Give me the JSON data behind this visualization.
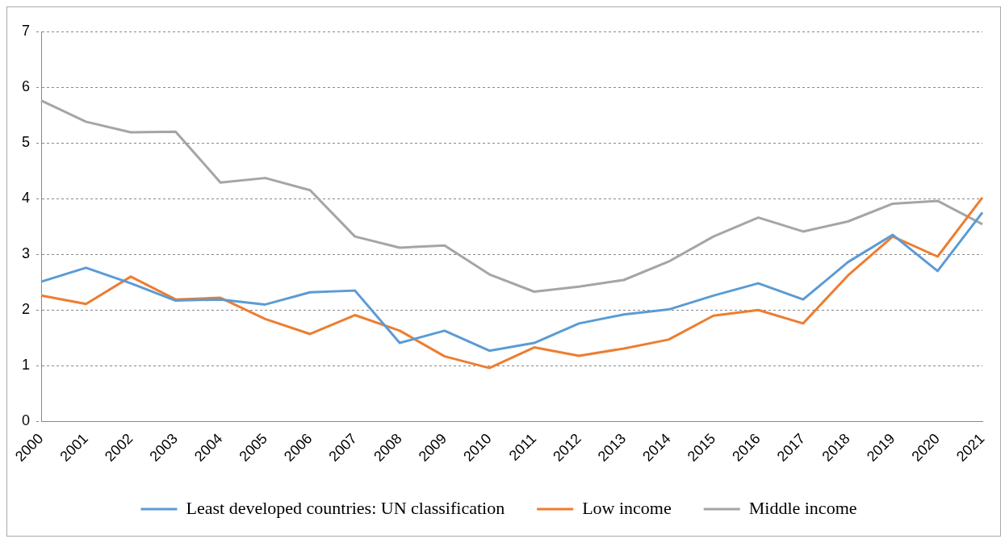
{
  "chart_data": {
    "type": "line",
    "categories": [
      "2000",
      "2001",
      "2002",
      "2003",
      "2004",
      "2005",
      "2006",
      "2007",
      "2008",
      "2009",
      "2010",
      "2011",
      "2012",
      "2013",
      "2014",
      "2015",
      "2016",
      "2017",
      "2018",
      "2019",
      "2020",
      "2021"
    ],
    "series": [
      {
        "name": "Least developed countries: UN classification",
        "color": "#5b9bd5",
        "values": [
          2.51,
          2.76,
          2.48,
          2.17,
          2.19,
          2.1,
          2.32,
          2.35,
          1.41,
          1.63,
          1.27,
          1.41,
          1.76,
          1.92,
          2.01,
          2.26,
          2.48,
          2.19,
          2.86,
          3.35,
          2.7,
          3.75
        ]
      },
      {
        "name": "Low income",
        "color": "#ed7d31",
        "values": [
          2.26,
          2.11,
          2.6,
          2.19,
          2.22,
          1.84,
          1.57,
          1.91,
          1.63,
          1.17,
          0.96,
          1.33,
          1.18,
          1.31,
          1.47,
          1.9,
          2.0,
          1.76,
          2.62,
          3.32,
          2.96,
          4.02
        ]
      },
      {
        "name": "Middle income",
        "color": "#a5a5a5",
        "values": [
          5.76,
          5.38,
          5.19,
          5.2,
          4.29,
          4.37,
          4.15,
          3.32,
          3.12,
          3.16,
          2.64,
          2.33,
          2.42,
          2.54,
          2.87,
          3.32,
          3.66,
          3.41,
          3.59,
          3.91,
          3.96,
          3.54
        ]
      }
    ],
    "ylim": [
      0,
      7
    ],
    "yticks": [
      0,
      1,
      2,
      3,
      4,
      5,
      6,
      7
    ],
    "grid": "y",
    "legend": "bottom",
    "marker": "none",
    "line_style": "solid"
  }
}
